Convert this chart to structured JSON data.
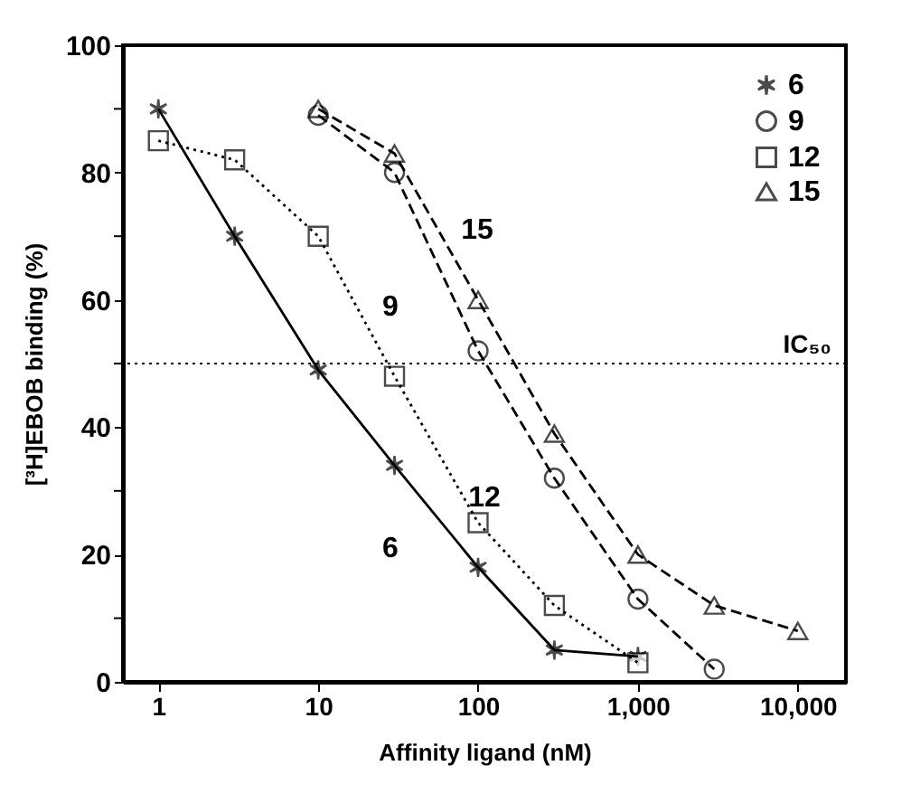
{
  "chart_data": {
    "type": "line",
    "xlabel": "Affinity ligand (nM)",
    "ylabel": "[³H]EBOB binding (%)",
    "log": "x",
    "xlim": [
      0.6,
      20000
    ],
    "ylim": [
      0,
      100
    ],
    "xticks": [
      1,
      10,
      100,
      {
        "value": 1000,
        "label": "1,000"
      },
      {
        "value": 10000,
        "label": "10,000"
      }
    ],
    "yticks": [
      0,
      {
        "value": 10,
        "label": null
      },
      20,
      {
        "value": 30,
        "label": null
      },
      40,
      {
        "value": 50,
        "label": null
      },
      60,
      {
        "value": 70,
        "label": null
      },
      80,
      {
        "value": 90,
        "label": null
      },
      100
    ],
    "legend": "top right",
    "grid": false,
    "series": [
      {
        "name": "6",
        "color": "#000000",
        "marker": "cross",
        "line_style": "solid",
        "x": [
          1,
          3,
          10,
          30,
          100,
          300,
          1000
        ],
        "values": [
          90,
          70,
          49,
          34,
          18,
          5,
          4
        ]
      },
      {
        "name": "9",
        "color": "#000000",
        "marker": "circle",
        "line_style": "dashed",
        "x": [
          10,
          30,
          100,
          300,
          1000,
          3000
        ],
        "values": [
          89,
          80,
          52,
          32,
          13,
          2
        ]
      },
      {
        "name": "12",
        "color": "#000000",
        "marker": "square",
        "line_style": "dotted",
        "x": [
          1,
          3,
          10,
          30,
          100,
          300,
          1000
        ],
        "values": [
          85,
          82,
          70,
          48,
          25,
          12,
          3
        ]
      },
      {
        "name": "15",
        "color": "#000000",
        "marker": "triangle",
        "line_style": "dashed",
        "x": [
          10,
          30,
          100,
          300,
          1000,
          3000,
          10000
        ],
        "values": [
          90,
          83,
          60,
          39,
          20,
          12,
          8
        ]
      }
    ],
    "ref_lines": [
      {
        "axis": "y",
        "value": 50,
        "label": "IC₅₀",
        "line_style": "dotted"
      }
    ],
    "annotations": [
      "6",
      "9",
      "12",
      "15"
    ]
  }
}
